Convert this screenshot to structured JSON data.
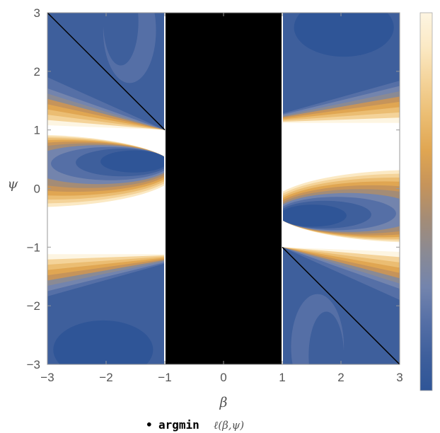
{
  "chart_data": {
    "type": "heatmap",
    "title": "",
    "xlabel": "β",
    "ylabel": "ψ",
    "xlim": [
      -3,
      3
    ],
    "ylim": [
      -3,
      3
    ],
    "x_ticks": [
      -3,
      -2,
      -1,
      0,
      1,
      2,
      3
    ],
    "y_ticks": [
      -3,
      -2,
      -1,
      0,
      1,
      2,
      3
    ],
    "x_tick_labels": [
      "−3",
      "−2",
      "−1",
      "0",
      "1",
      "2",
      "3"
    ],
    "y_tick_labels": [
      "−3",
      "−2",
      "−1",
      "0",
      "1",
      "2",
      "3"
    ],
    "masked_region": {
      "x_range": [
        -1,
        1
      ],
      "y_range": [
        -3,
        3
      ],
      "color": "#000000"
    },
    "argmin_lines": [
      {
        "points": [
          [
            -3,
            3
          ],
          [
            -1,
            1
          ]
        ]
      },
      {
        "points": [
          [
            1,
            -1
          ],
          [
            3,
            -3
          ]
        ]
      }
    ],
    "contours": {
      "left": [
        {
          "level": 0.0,
          "rx": 1.45,
          "ry": 0.28,
          "cy": 0.55
        },
        {
          "level": 0.1,
          "rx": 2.1,
          "ry": 0.45,
          "cy": 0.45
        },
        {
          "level": 0.25,
          "rx": 2.9,
          "ry": 0.6,
          "cy": 0.35
        },
        {
          "level": 0.4,
          "rx": 3.6,
          "ry": 0.7,
          "cy": 0.28
        },
        {
          "level": 0.55,
          "rx": 4.6,
          "ry": 0.75,
          "cy": 0.22
        },
        {
          "level": 0.7,
          "rx": 5.8,
          "ry": 0.82,
          "cy": 0.15
        },
        {
          "level": 0.85,
          "rx": 7.2,
          "ry": 0.88,
          "cy": 0.08
        }
      ],
      "right": [
        {
          "level": 0.0,
          "rx": 1.45,
          "ry": 0.28,
          "cy": -0.55
        },
        {
          "level": 0.1,
          "rx": 2.1,
          "ry": 0.45,
          "cy": -0.45
        },
        {
          "level": 0.25,
          "rx": 2.9,
          "ry": 0.6,
          "cy": -0.35
        },
        {
          "level": 0.4,
          "rx": 3.6,
          "ry": 0.7,
          "cy": -0.28
        },
        {
          "level": 0.55,
          "rx": 4.6,
          "ry": 0.75,
          "cy": -0.22
        },
        {
          "level": 0.7,
          "rx": 5.8,
          "ry": 0.82,
          "cy": -0.15
        },
        {
          "level": 0.85,
          "rx": 7.2,
          "ry": 0.88,
          "cy": -0.08
        }
      ]
    },
    "colorbar": {
      "stops": [
        "#2f5597",
        "#3e5f9c",
        "#556fa6",
        "#7384ad",
        "#8a8a94",
        "#a48c76",
        "#c6945a",
        "#e0a652",
        "#ebbd72",
        "#f4d399",
        "#fbe9c4",
        "#fdf5e2"
      ]
    },
    "legend": {
      "marker": "•",
      "label": "argmin",
      "expression": "ℓ(β,ψ)",
      "position": "bottom-center"
    }
  }
}
